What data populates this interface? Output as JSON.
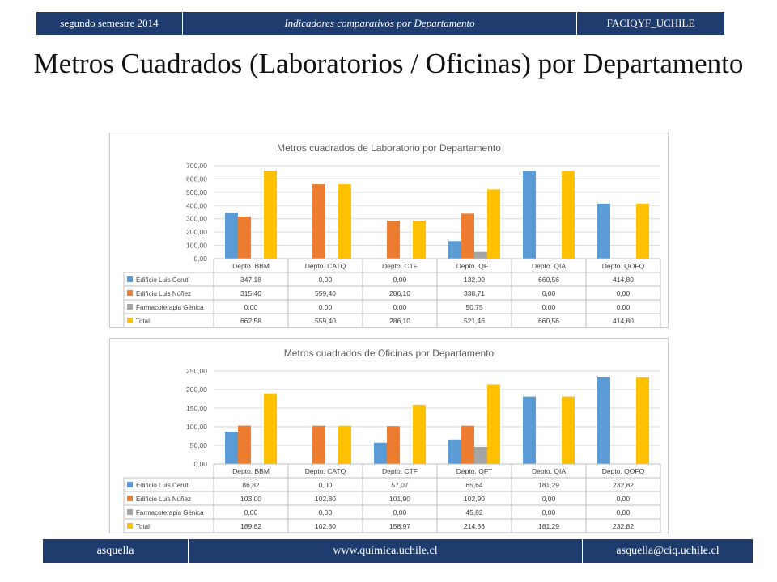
{
  "header": {
    "left": "segundo semestre 2014",
    "center": "Indicadores comparativos por Departamento",
    "right": "FACIQYF_UCHILE"
  },
  "slide": {
    "title": "Metros Cuadrados (Laboratorios / Oficinas) por Departamento"
  },
  "footer": {
    "left": "asquella",
    "center": "www.química.uchile.cl",
    "right": "asquella@ciq.uchile.cl"
  },
  "colors": {
    "header_bg": "#1f3c6e",
    "series": [
      "#5b9bd5",
      "#ed7d31",
      "#a5a5a5",
      "#ffc000"
    ]
  },
  "chart_data": [
    {
      "type": "bar",
      "title": "Metros cuadrados de Laboratorio por Departamento",
      "categories": [
        "Depto. BBM",
        "Depto. CATQ",
        "Depto. CTF",
        "Depto. QFT",
        "Depto. QIA",
        "Depto. QOFQ"
      ],
      "ylim": [
        0,
        700
      ],
      "yticks": [
        "0,00",
        "100,00",
        "200,00",
        "300,00",
        "400,00",
        "500,00",
        "600,00",
        "700,00"
      ],
      "grid": true,
      "legend": "data-table",
      "series": [
        {
          "name": "Edificio Luis Ceruti",
          "values": [
            347.18,
            0,
            0,
            132.0,
            660.56,
            414.8
          ],
          "labels": [
            "347,18",
            "0,00",
            "0,00",
            "132,00",
            "660,56",
            "414,80"
          ]
        },
        {
          "name": "Edificio Luis Núñez",
          "values": [
            315.4,
            559.4,
            286.1,
            338.71,
            0,
            0
          ],
          "labels": [
            "315,40",
            "559,40",
            "286,10",
            "338,71",
            "0,00",
            "0,00"
          ]
        },
        {
          "name": "Farmacoterapia Génica",
          "values": [
            0,
            0,
            0,
            50.75,
            0,
            0
          ],
          "labels": [
            "0,00",
            "0,00",
            "0,00",
            "50,75",
            "0,00",
            "0,00"
          ]
        },
        {
          "name": "Total",
          "values": [
            662.58,
            559.4,
            286.1,
            521.46,
            660.56,
            414.8
          ],
          "labels": [
            "662,58",
            "559,40",
            "286,10",
            "521,46",
            "660,56",
            "414,80"
          ]
        }
      ]
    },
    {
      "type": "bar",
      "title": "Metros cuadrados de Oficinas por Departamento",
      "categories": [
        "Depto. BBM",
        "Depto. CATQ",
        "Depto. CTF",
        "Depto. QFT",
        "Depto. QIA",
        "Depto. QOFQ"
      ],
      "ylim": [
        0,
        250
      ],
      "yticks": [
        "0,00",
        "50,00",
        "100,00",
        "150,00",
        "200,00",
        "250,00"
      ],
      "grid": true,
      "legend": "data-table",
      "series": [
        {
          "name": "Edificio Luis Ceruti",
          "values": [
            86.82,
            0,
            57.07,
            65.64,
            181.29,
            232.82
          ],
          "labels": [
            "86,82",
            "0,00",
            "57,07",
            "65,64",
            "181,29",
            "232,82"
          ]
        },
        {
          "name": "Edificio Luis Núñez",
          "values": [
            103.0,
            102.8,
            101.9,
            102.9,
            0,
            0
          ],
          "labels": [
            "103,00",
            "102,80",
            "101,90",
            "102,90",
            "0,00",
            "0,00"
          ]
        },
        {
          "name": "Farmacoterapia Génica",
          "values": [
            0,
            0,
            0,
            45.82,
            0,
            0
          ],
          "labels": [
            "0,00",
            "0,00",
            "0,00",
            "45,82",
            "0,00",
            "0,00"
          ]
        },
        {
          "name": "Total",
          "values": [
            189.82,
            102.8,
            158.97,
            214.36,
            181.29,
            232.82
          ],
          "labels": [
            "189,82",
            "102,80",
            "158,97",
            "214,36",
            "181,29",
            "232,82"
          ]
        }
      ]
    }
  ]
}
